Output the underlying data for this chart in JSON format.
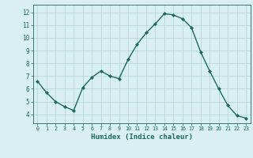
{
  "x": [
    0,
    1,
    2,
    3,
    4,
    5,
    6,
    7,
    8,
    9,
    10,
    11,
    12,
    13,
    14,
    15,
    16,
    17,
    18,
    19,
    20,
    21,
    22,
    23
  ],
  "y": [
    6.6,
    5.7,
    5.0,
    4.6,
    4.3,
    6.1,
    6.9,
    7.4,
    7.0,
    6.8,
    8.3,
    9.5,
    10.4,
    11.1,
    11.9,
    11.8,
    11.5,
    10.8,
    8.9,
    7.4,
    6.0,
    4.7,
    3.9,
    3.7
  ],
  "line_color": "#1a6b5a",
  "marker": "D",
  "markersize": 2.2,
  "linewidth": 1.0,
  "bg_color": "#d9eff0",
  "grid_color": "#b8d8d8",
  "xlabel": "Humidex (Indice chaleur)",
  "xlabel_fontsize": 6.5,
  "xtick_labels": [
    "0",
    "1",
    "2",
    "3",
    "4",
    "5",
    "6",
    "7",
    "8",
    "9",
    "10",
    "11",
    "12",
    "13",
    "14",
    "15",
    "16",
    "17",
    "18",
    "19",
    "20",
    "21",
    "22",
    "23"
  ],
  "ytick_min": 4,
  "ytick_max": 12,
  "ytick_step": 1,
  "xlim": [
    -0.5,
    23.5
  ],
  "ylim": [
    3.3,
    12.6
  ]
}
